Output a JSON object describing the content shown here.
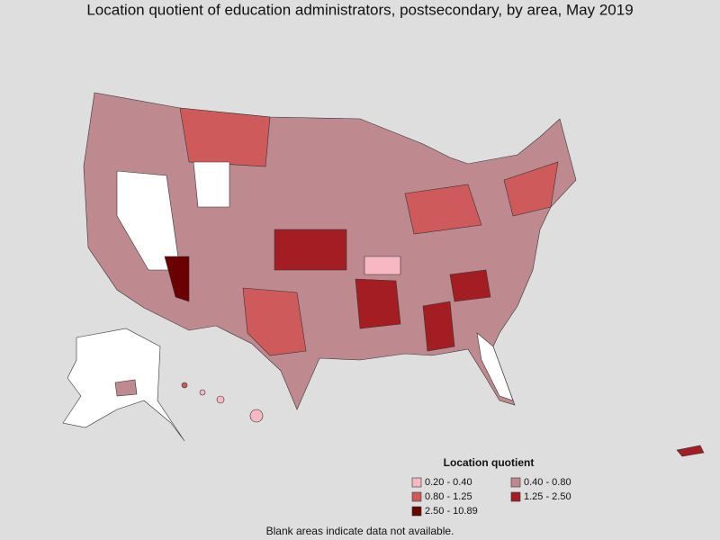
{
  "title": "Location quotient of education administrators, postsecondary, by area, May 2019",
  "legend": {
    "title": "Location quotient",
    "items": [
      {
        "label": "0.20 - 0.40",
        "color": "#f7b7c3"
      },
      {
        "label": "0.40 - 0.80",
        "color": "#bf8a8f"
      },
      {
        "label": "0.80 - 1.25",
        "color": "#cf5a5c"
      },
      {
        "label": "1.25 - 2.50",
        "color": "#a41d23"
      },
      {
        "label": "2.50 - 10.89",
        "color": "#6a0000"
      }
    ]
  },
  "footnote": "Blank areas indicate data not available."
}
